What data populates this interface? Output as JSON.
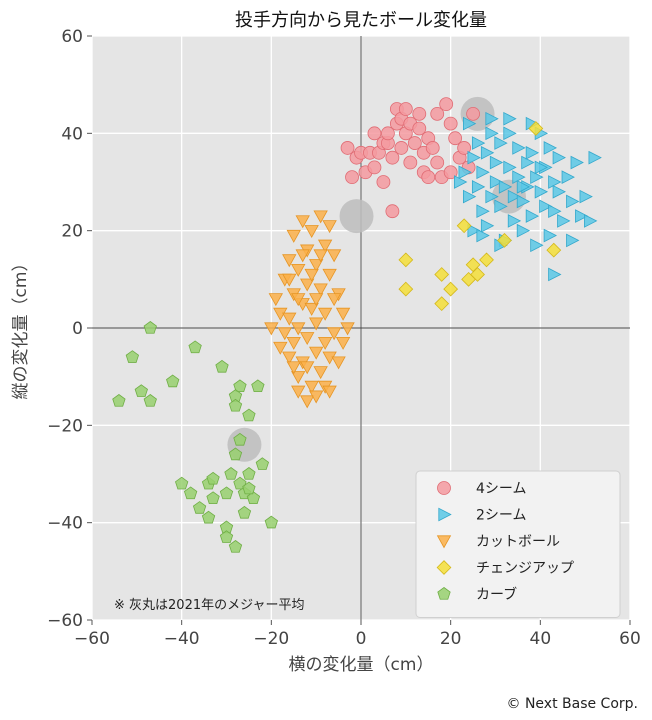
{
  "chart_data": {
    "type": "scatter",
    "title": "投手方向から見たボール変化量",
    "xlabel": "横の変化量（cm）",
    "ylabel": "縦の変化量（cm）",
    "xlim": [
      -60,
      60
    ],
    "ylim": [
      -60,
      60
    ],
    "xticks": [
      -60,
      -40,
      -20,
      0,
      20,
      40,
      60
    ],
    "yticks": [
      -60,
      -40,
      -20,
      0,
      20,
      40,
      60
    ],
    "xtick_labels": [
      "−60",
      "−40",
      "−20",
      "0",
      "20",
      "40",
      "60"
    ],
    "ytick_labels": [
      "−60",
      "−40",
      "−20",
      "0",
      "20",
      "40",
      "60"
    ],
    "grid": true,
    "legend_position": "bottom-right",
    "note": "※ 灰丸は2021年のメジャー平均",
    "credit": "© Next Base Corp.",
    "colors": {
      "panel": "#e5e5e5",
      "grid": "#ffffff",
      "axis_zero": "#444444",
      "average_marker": "#bdbdbd"
    },
    "series": [
      {
        "name": "4シーム",
        "marker": "circle",
        "color": "#f59aa0",
        "edge": "#e06c74",
        "points": [
          [
            -3,
            37
          ],
          [
            -2,
            31
          ],
          [
            -1,
            35
          ],
          [
            0,
            36
          ],
          [
            1,
            32
          ],
          [
            2,
            36
          ],
          [
            3,
            40
          ],
          [
            4,
            36
          ],
          [
            5,
            38
          ],
          [
            6,
            38
          ],
          [
            6,
            40
          ],
          [
            7,
            35
          ],
          [
            8,
            42
          ],
          [
            8,
            45
          ],
          [
            9,
            43
          ],
          [
            9,
            37
          ],
          [
            10,
            40
          ],
          [
            10,
            45
          ],
          [
            11,
            42
          ],
          [
            11,
            34
          ],
          [
            12,
            38
          ],
          [
            13,
            44
          ],
          [
            13,
            41
          ],
          [
            14,
            36
          ],
          [
            14,
            32
          ],
          [
            15,
            39
          ],
          [
            16,
            37
          ],
          [
            17,
            34
          ],
          [
            17,
            44
          ],
          [
            18,
            31
          ],
          [
            19,
            46
          ],
          [
            20,
            42
          ],
          [
            21,
            39
          ],
          [
            22,
            35
          ],
          [
            23,
            37
          ],
          [
            24,
            33
          ],
          [
            25,
            44
          ],
          [
            7,
            24
          ],
          [
            15,
            31
          ],
          [
            20,
            32
          ],
          [
            3,
            33
          ],
          [
            5,
            30
          ]
        ]
      },
      {
        "name": "2シーム",
        "marker": "triangle-right",
        "color": "#5bc8e6",
        "edge": "#33a8cc",
        "points": [
          [
            23,
            32
          ],
          [
            24,
            27
          ],
          [
            25,
            35
          ],
          [
            25,
            20
          ],
          [
            26,
            29
          ],
          [
            26,
            38
          ],
          [
            27,
            24
          ],
          [
            27,
            32
          ],
          [
            28,
            36
          ],
          [
            28,
            21
          ],
          [
            29,
            27
          ],
          [
            29,
            40
          ],
          [
            30,
            30
          ],
          [
            30,
            34
          ],
          [
            31,
            25
          ],
          [
            31,
            38
          ],
          [
            32,
            18
          ],
          [
            32,
            29
          ],
          [
            33,
            33
          ],
          [
            33,
            40
          ],
          [
            34,
            22
          ],
          [
            34,
            27
          ],
          [
            35,
            31
          ],
          [
            35,
            37
          ],
          [
            36,
            20
          ],
          [
            36,
            26
          ],
          [
            37,
            34
          ],
          [
            37,
            29
          ],
          [
            38,
            23
          ],
          [
            38,
            36
          ],
          [
            39,
            31
          ],
          [
            39,
            17
          ],
          [
            40,
            28
          ],
          [
            40,
            40
          ],
          [
            41,
            25
          ],
          [
            41,
            33
          ],
          [
            42,
            19
          ],
          [
            42,
            37
          ],
          [
            43,
            30
          ],
          [
            43,
            24
          ],
          [
            44,
            35
          ],
          [
            44,
            28
          ],
          [
            45,
            22
          ],
          [
            46,
            31
          ],
          [
            47,
            26
          ],
          [
            48,
            34
          ],
          [
            49,
            23
          ],
          [
            50,
            27
          ],
          [
            51,
            22
          ],
          [
            52,
            35
          ],
          [
            43,
            11
          ],
          [
            47,
            18
          ],
          [
            33,
            43
          ],
          [
            38,
            42
          ],
          [
            29,
            43
          ],
          [
            22,
            30
          ],
          [
            27,
            19
          ],
          [
            31,
            17
          ],
          [
            36,
            29
          ],
          [
            40,
            33
          ],
          [
            24,
            42
          ]
        ]
      },
      {
        "name": "カットボール",
        "marker": "triangle-down",
        "color": "#fbb04a",
        "edge": "#e69524",
        "points": [
          [
            -20,
            0
          ],
          [
            -19,
            6
          ],
          [
            -18,
            3
          ],
          [
            -18,
            -4
          ],
          [
            -17,
            10
          ],
          [
            -17,
            -1
          ],
          [
            -16,
            14
          ],
          [
            -16,
            2
          ],
          [
            -16,
            -6
          ],
          [
            -15,
            19
          ],
          [
            -15,
            7
          ],
          [
            -15,
            -3
          ],
          [
            -14,
            12
          ],
          [
            -14,
            0
          ],
          [
            -14,
            -10
          ],
          [
            -13,
            22
          ],
          [
            -13,
            5
          ],
          [
            -13,
            -7
          ],
          [
            -12,
            16
          ],
          [
            -12,
            9
          ],
          [
            -12,
            -2
          ],
          [
            -11,
            20
          ],
          [
            -11,
            4
          ],
          [
            -11,
            -12
          ],
          [
            -10,
            13
          ],
          [
            -10,
            1
          ],
          [
            -10,
            -5
          ],
          [
            -9,
            23
          ],
          [
            -9,
            8
          ],
          [
            -9,
            -9
          ],
          [
            -8,
            17
          ],
          [
            -8,
            3
          ],
          [
            -8,
            -3
          ],
          [
            -7,
            21
          ],
          [
            -7,
            11
          ],
          [
            -7,
            -6
          ],
          [
            -6,
            15
          ],
          [
            -6,
            -1
          ],
          [
            -5,
            7
          ],
          [
            -5,
            -7
          ],
          [
            -4,
            3
          ],
          [
            -3,
            0
          ],
          [
            -14,
            -13
          ],
          [
            -12,
            -15
          ],
          [
            -10,
            -14
          ],
          [
            -8,
            -12
          ],
          [
            -16,
            10
          ],
          [
            -11,
            11
          ],
          [
            -13,
            15
          ],
          [
            -9,
            15
          ],
          [
            -15,
            -8
          ],
          [
            -7,
            -13
          ],
          [
            -12,
            -8
          ],
          [
            -10,
            6
          ],
          [
            -14,
            6
          ],
          [
            -6,
            6
          ],
          [
            -4,
            -3
          ]
        ]
      },
      {
        "name": "チェンジアップ",
        "marker": "diamond",
        "color": "#f5df3a",
        "edge": "#d4b81a",
        "points": [
          [
            10,
            14
          ],
          [
            10,
            8
          ],
          [
            18,
            11
          ],
          [
            18,
            5
          ],
          [
            20,
            8
          ],
          [
            23,
            21
          ],
          [
            24,
            10
          ],
          [
            26,
            11
          ],
          [
            28,
            14
          ],
          [
            32,
            18
          ],
          [
            39,
            41
          ],
          [
            43,
            16
          ],
          [
            25,
            13
          ]
        ]
      },
      {
        "name": "カーブ",
        "marker": "pentagon",
        "color": "#98d06e",
        "edge": "#6fae45",
        "points": [
          [
            -47,
            0
          ],
          [
            -51,
            -6
          ],
          [
            -37,
            -4
          ],
          [
            -42,
            -11
          ],
          [
            -49,
            -13
          ],
          [
            -47,
            -15
          ],
          [
            -54,
            -15
          ],
          [
            -31,
            -8
          ],
          [
            -27,
            -12
          ],
          [
            -28,
            -14
          ],
          [
            -28,
            -16
          ],
          [
            -23,
            -12
          ],
          [
            -25,
            -18
          ],
          [
            -27,
            -23
          ],
          [
            -28,
            -26
          ],
          [
            -29,
            -30
          ],
          [
            -27,
            -32
          ],
          [
            -25,
            -30
          ],
          [
            -26,
            -34
          ],
          [
            -24,
            -35
          ],
          [
            -22,
            -28
          ],
          [
            -30,
            -34
          ],
          [
            -33,
            -35
          ],
          [
            -38,
            -34
          ],
          [
            -40,
            -32
          ],
          [
            -36,
            -37
          ],
          [
            -34,
            -32
          ],
          [
            -34,
            -39
          ],
          [
            -30,
            -41
          ],
          [
            -30,
            -43
          ],
          [
            -26,
            -38
          ],
          [
            -28,
            -45
          ],
          [
            -20,
            -40
          ],
          [
            -33,
            -31
          ],
          [
            -25,
            -33
          ]
        ]
      },
      {
        "name": "",
        "marker": "average-circle",
        "color": "#bdbdbd",
        "points": [
          [
            26,
            44
          ],
          [
            33,
            27
          ],
          [
            -1,
            23
          ],
          [
            -26,
            -24
          ]
        ]
      }
    ]
  }
}
